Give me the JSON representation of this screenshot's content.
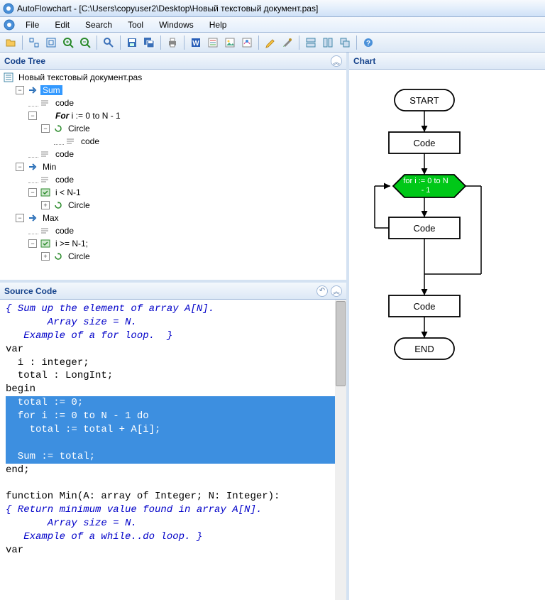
{
  "window": {
    "title": "AutoFlowchart - [C:\\Users\\copyuser2\\Desktop\\Новый текстовый документ.pas]"
  },
  "menu": {
    "items": [
      "File",
      "Edit",
      "Search",
      "Tool",
      "Windows",
      "Help"
    ]
  },
  "panels": {
    "codeTree": "Code Tree",
    "sourceCode": "Source Code",
    "chart": "Chart"
  },
  "tree": {
    "root": "Новый текстовый документ.pas",
    "nodes": [
      {
        "depth": 0,
        "toggle": "-",
        "icon": "arrow-blue",
        "label": "Sum",
        "selected": true
      },
      {
        "depth": 1,
        "toggle": "",
        "icon": "code",
        "label": "code"
      },
      {
        "depth": 1,
        "toggle": "-",
        "icon": "for",
        "label": "i := 0 to N - 1",
        "italic": true,
        "prefix": "For"
      },
      {
        "depth": 2,
        "toggle": "-",
        "icon": "loop",
        "label": "Circle"
      },
      {
        "depth": 3,
        "toggle": "",
        "icon": "code",
        "label": "code"
      },
      {
        "depth": 1,
        "toggle": "",
        "icon": "code",
        "label": "code"
      },
      {
        "depth": 0,
        "toggle": "-",
        "icon": "arrow-blue",
        "label": "Min"
      },
      {
        "depth": 1,
        "toggle": "",
        "icon": "code",
        "label": "code"
      },
      {
        "depth": 1,
        "toggle": "-",
        "icon": "cond",
        "label": "i < N-1"
      },
      {
        "depth": 2,
        "toggle": "+",
        "icon": "loop",
        "label": "Circle"
      },
      {
        "depth": 0,
        "toggle": "-",
        "icon": "arrow-blue",
        "label": "Max"
      },
      {
        "depth": 1,
        "toggle": "",
        "icon": "code",
        "label": "code"
      },
      {
        "depth": 1,
        "toggle": "-",
        "icon": "cond",
        "label": "i >= N-1;"
      },
      {
        "depth": 2,
        "toggle": "+",
        "icon": "loop",
        "label": "Circle"
      }
    ]
  },
  "source": {
    "lines": [
      {
        "t": "{ Sum up the element of array A[N].",
        "cls": "c-comment"
      },
      {
        "t": "       Array size = N.",
        "cls": "c-comment"
      },
      {
        "t": "   Example of a for loop.  }",
        "cls": "c-comment"
      },
      {
        "t": "var",
        "cls": ""
      },
      {
        "t": "  i : integer;",
        "cls": ""
      },
      {
        "t": "  total : LongInt;",
        "cls": ""
      },
      {
        "t": "begin",
        "cls": ""
      },
      {
        "t": "  total := 0;",
        "cls": "c-hl"
      },
      {
        "t": "  for i := 0 to N - 1 do",
        "cls": "c-hl"
      },
      {
        "t": "    total := total + A[i];",
        "cls": "c-hl"
      },
      {
        "t": " ",
        "cls": "c-hl"
      },
      {
        "t": "  Sum := total;",
        "cls": "c-hl"
      },
      {
        "t": "end;",
        "cls": ""
      },
      {
        "t": " ",
        "cls": ""
      },
      {
        "t": "function Min(A: array of Integer; N: Integer):",
        "cls": ""
      },
      {
        "t": "{ Return minimum value found in array A[N].",
        "cls": "c-comment"
      },
      {
        "t": "       Array size = N.",
        "cls": "c-comment"
      },
      {
        "t": "   Example of a while..do loop. }",
        "cls": "c-comment"
      },
      {
        "t": "var",
        "cls": ""
      }
    ]
  },
  "chart": {
    "nodes": {
      "start": "START",
      "code1": "Code",
      "loop": "for i := 0 to N - 1",
      "code2": "Code",
      "code3": "Code",
      "end": "END"
    },
    "colors": {
      "node_fill": "#ffffff",
      "node_stroke": "#000000",
      "loop_fill": "#00c818",
      "loop_text": "#ffffff",
      "text": "#000000",
      "line": "#000000"
    },
    "fontsize": 13
  },
  "toolbar_icons": [
    "open",
    "sep",
    "zoom-reset",
    "zoom-fit",
    "zoom-in",
    "zoom-out",
    "sep",
    "find",
    "sep",
    "save",
    "save-all",
    "sep",
    "print",
    "sep",
    "export-word",
    "export-rtf",
    "export-img",
    "export-svg",
    "sep",
    "edit",
    "settings",
    "sep",
    "tile-h",
    "tile-v",
    "cascade",
    "sep",
    "help"
  ]
}
